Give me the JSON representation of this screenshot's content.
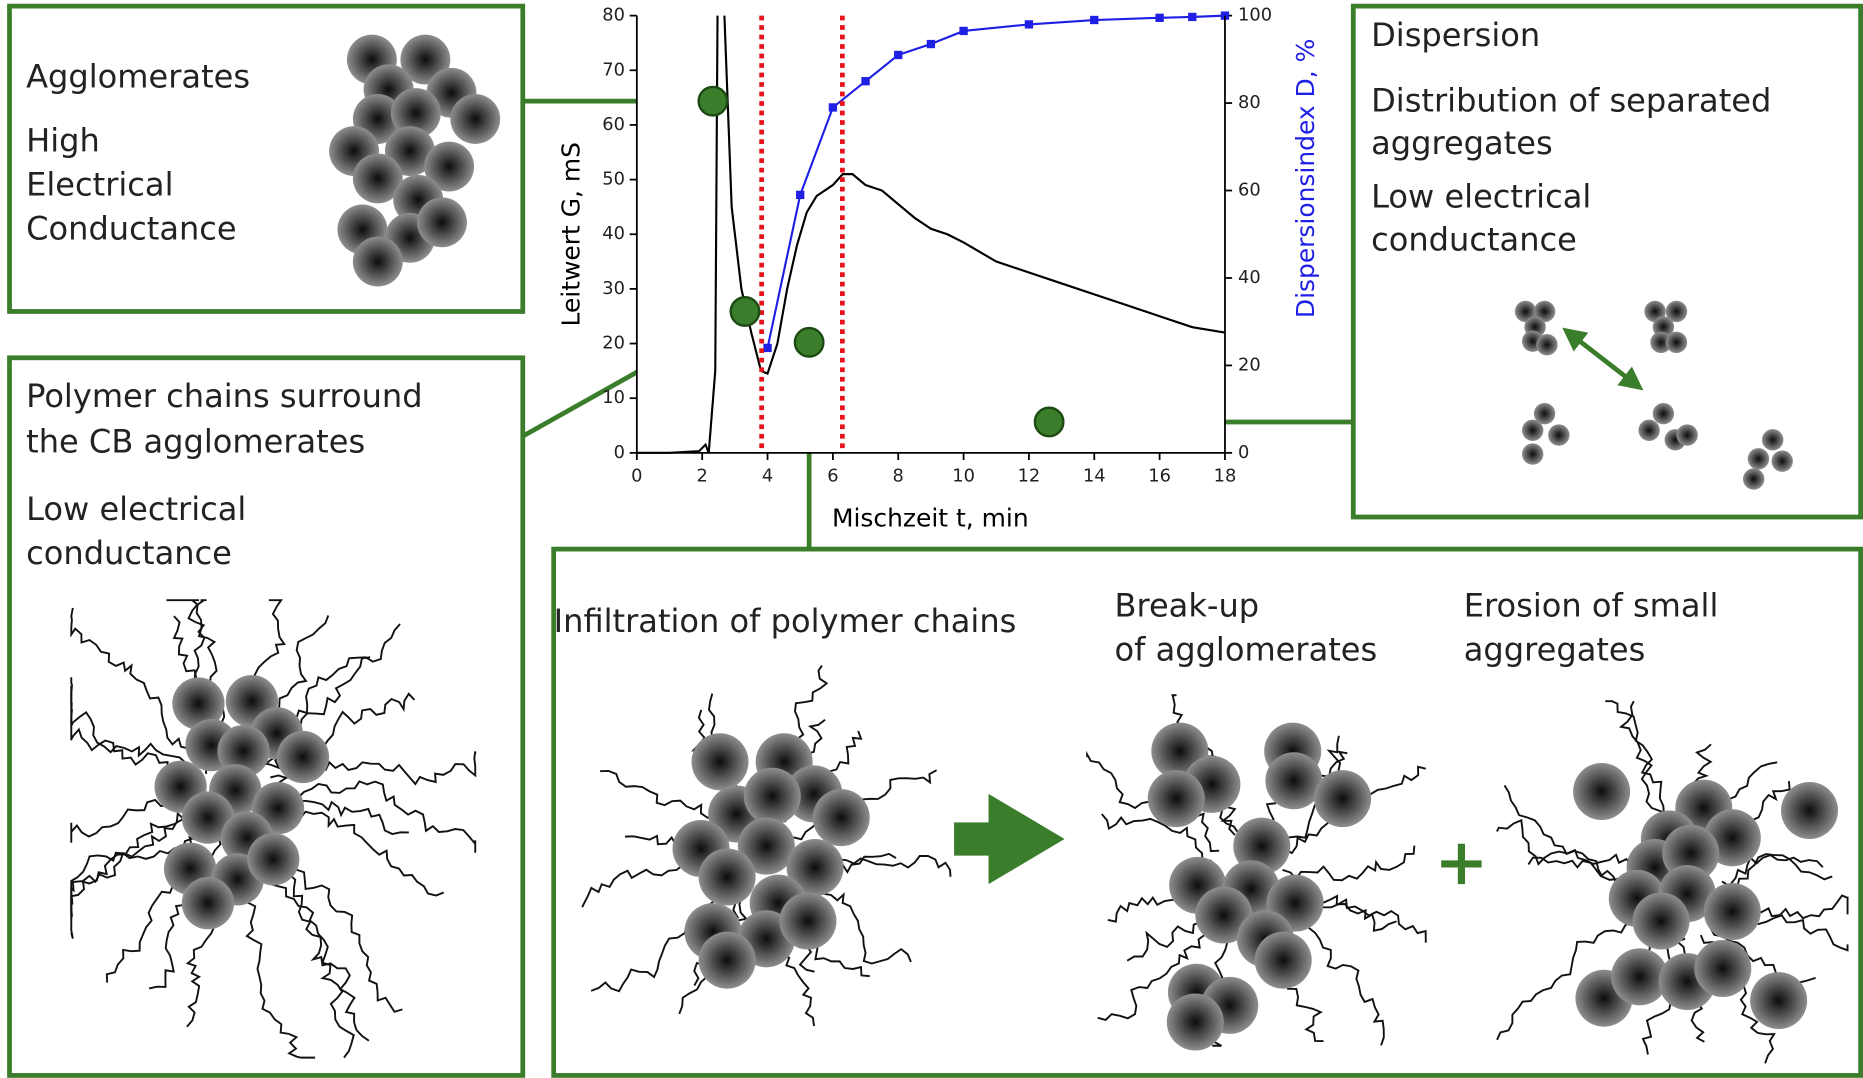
{
  "chart_data": {
    "type": "line",
    "xlabel": "Mischzeit t, min",
    "ylabel": "Leitwert G, mS",
    "y2label": "Dispersionsindex D, %",
    "xlim": [
      0,
      18
    ],
    "xticks": [
      0,
      2,
      4,
      6,
      8,
      10,
      12,
      14,
      16,
      18
    ],
    "ylim": [
      0,
      80
    ],
    "yticks": [
      0,
      10,
      20,
      30,
      40,
      50,
      60,
      70,
      80
    ],
    "y2lim": [
      0,
      100
    ],
    "y2ticks": [
      0,
      20,
      40,
      60,
      80,
      100
    ],
    "vlines": {
      "x": [
        3.82,
        6.29
      ],
      "color": "#e8141b"
    },
    "series": [
      {
        "color": "#000000",
        "axis": "y",
        "x": [
          0,
          1,
          1.9,
          2.1,
          2.2,
          2.4,
          2.47,
          2.55,
          2.68,
          2.9,
          3.2,
          3.5,
          3.8,
          4.0,
          4.3,
          4.6,
          4.9,
          5.2,
          5.5,
          6.0,
          6.3,
          6.6,
          7,
          7.5,
          8,
          8.5,
          9,
          9.5,
          10,
          11,
          12,
          13,
          14,
          15,
          16,
          17,
          18
        ],
        "values": [
          0,
          0,
          0.3,
          1.5,
          0,
          15,
          80,
          null,
          80,
          45,
          30,
          22,
          15,
          14.5,
          20,
          30,
          38,
          44,
          47,
          49,
          51,
          51,
          49,
          48,
          45.5,
          43,
          41,
          40,
          38.5,
          35,
          33,
          31,
          29,
          27,
          25,
          23,
          22
        ]
      },
      {
        "color": "#1f1fe6",
        "axis": "y2",
        "marker": "square",
        "x": [
          4,
          5,
          6,
          7,
          8,
          9,
          10,
          12,
          14,
          16,
          17,
          18
        ],
        "values": [
          24,
          59,
          79,
          85,
          91,
          93.5,
          96.5,
          98,
          99,
          99.5,
          99.7,
          100
        ]
      }
    ]
  },
  "panels": {
    "agglomerates": [
      "Agglomerates",
      "High",
      "Electrical",
      "Conductance"
    ],
    "surround": [
      "Polymer chains surround",
      "the CB agglomerates",
      "Low electrical",
      "conductance"
    ],
    "dispersion": [
      "Dispersion",
      "Distribution of separated",
      "aggregates",
      "Low electrical",
      "conductance"
    ],
    "stages": [
      [
        "Infiltration of polymer chains"
      ],
      [
        "Break-up",
        "of agglomerates"
      ],
      [
        "Erosion of small",
        "aggregates"
      ]
    ]
  }
}
